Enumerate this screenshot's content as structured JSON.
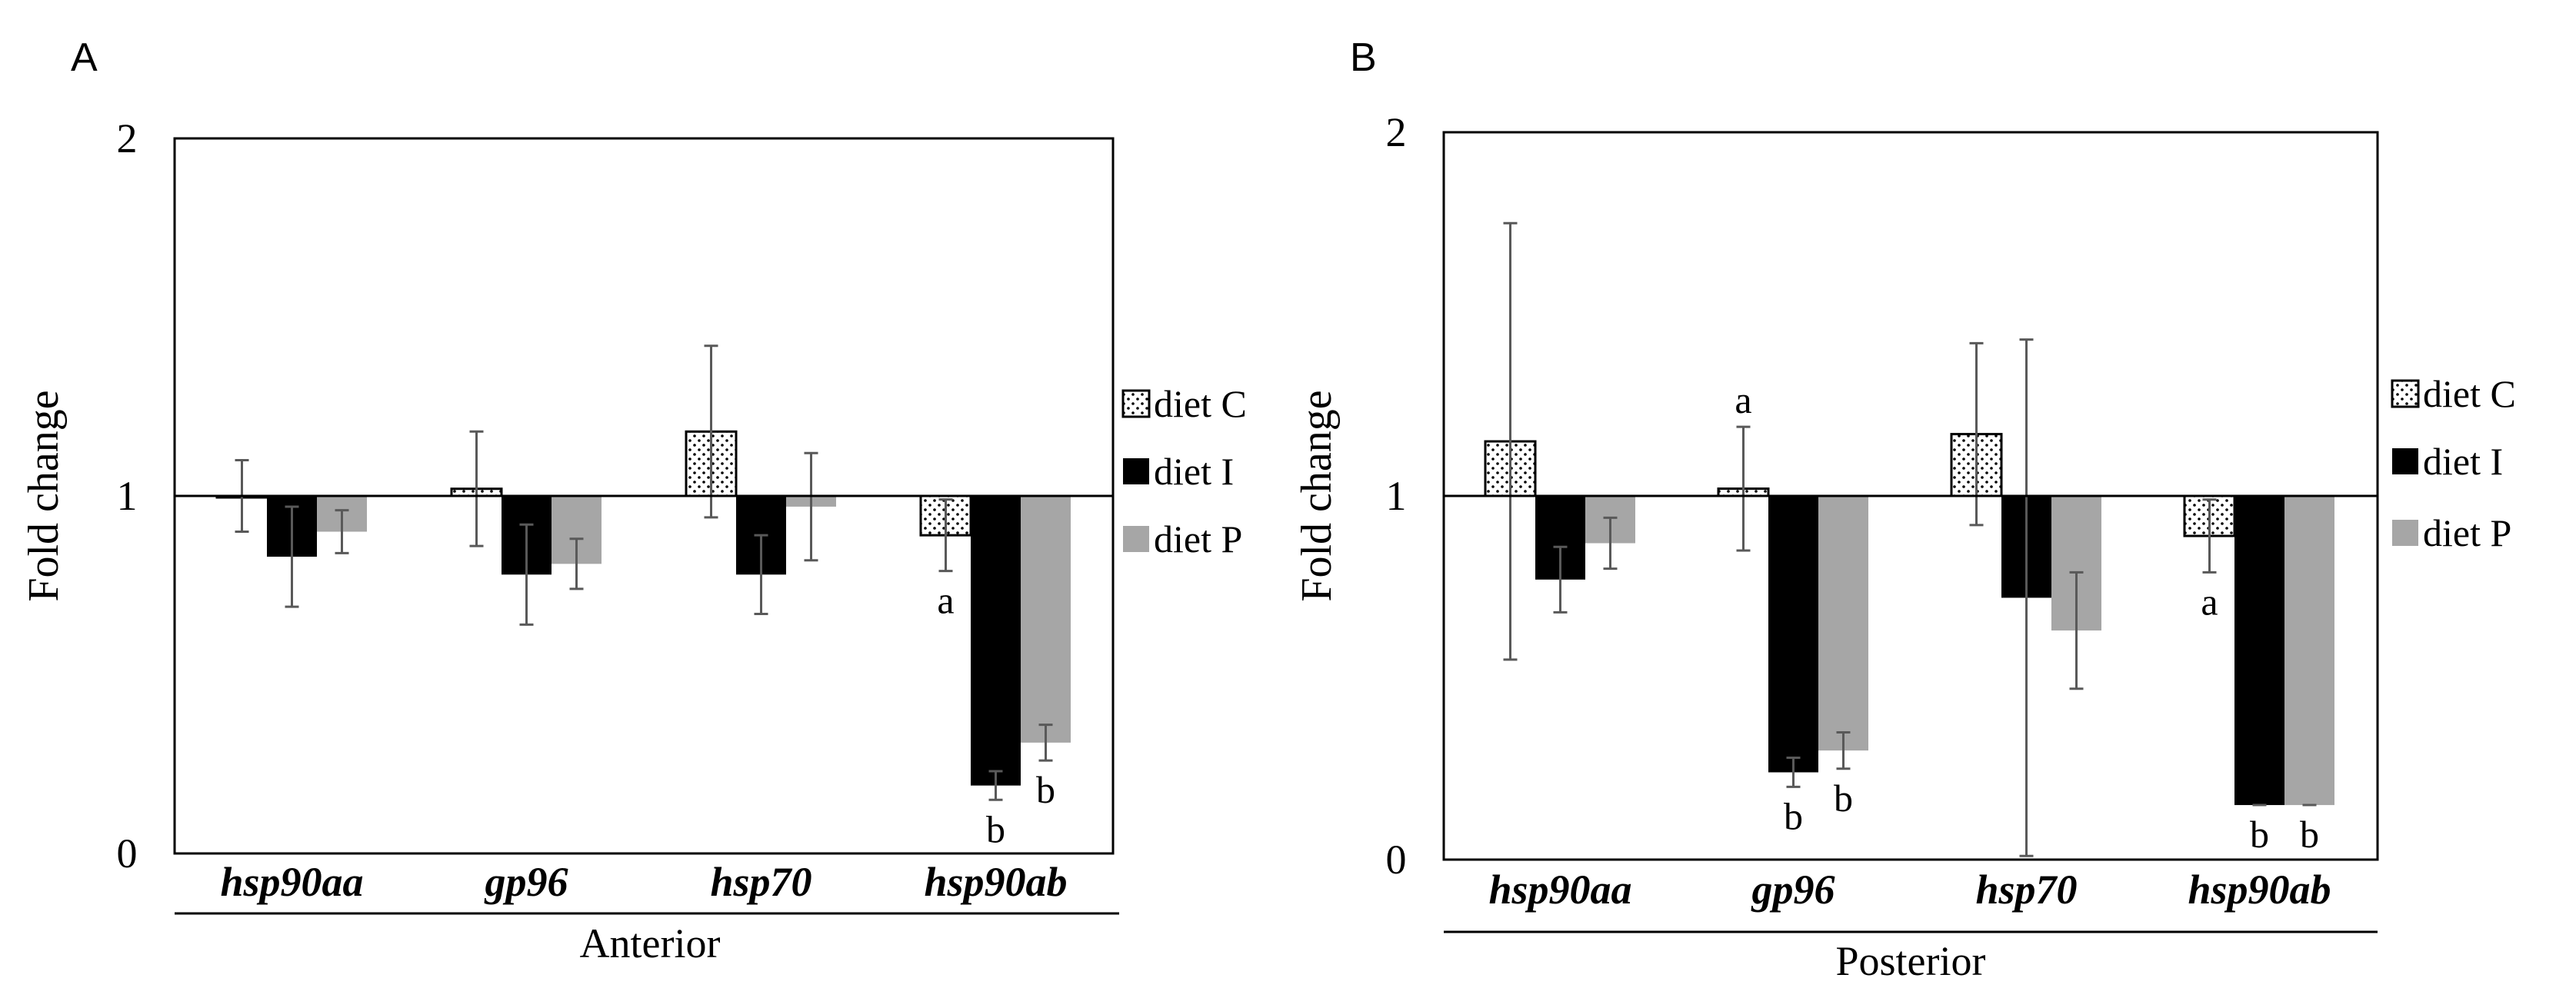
{
  "chart_data": [
    {
      "type": "bar",
      "panel_label": "A",
      "title": "",
      "xlabel": "Anterior",
      "ylabel": "Fold change",
      "ylim": [
        0,
        2
      ],
      "baseline": 1,
      "yticks": [
        "0",
        "1",
        "2"
      ],
      "categories": [
        "hsp90aa",
        "gp96",
        "hsp70",
        "hsp90ab"
      ],
      "series": [
        {
          "name": "diet C",
          "pattern": "dotted",
          "color": "#ffffff",
          "values": [
            1.0,
            1.02,
            1.18,
            0.89
          ],
          "errors": [
            0.1,
            0.16,
            0.24,
            0.1
          ],
          "labels": [
            "",
            "",
            "",
            "a"
          ]
        },
        {
          "name": "diet I",
          "pattern": "solid",
          "color": "#000000",
          "values": [
            0.83,
            0.78,
            0.78,
            0.19
          ],
          "errors": [
            0.14,
            0.14,
            0.11,
            0.04
          ],
          "labels": [
            "",
            "",
            "",
            "b"
          ]
        },
        {
          "name": "diet P",
          "pattern": "solid",
          "color": "#a6a6a6",
          "values": [
            0.9,
            0.81,
            0.97,
            0.31
          ],
          "errors": [
            0.06,
            0.07,
            0.15,
            0.05
          ],
          "labels": [
            "",
            "",
            "",
            "b"
          ]
        }
      ],
      "legend": [
        "diet C",
        "diet I",
        "diet P"
      ]
    },
    {
      "type": "bar",
      "panel_label": "B",
      "title": "",
      "xlabel": "Posterior",
      "ylabel": "Fold change",
      "ylim": [
        0,
        2
      ],
      "baseline": 1,
      "yticks": [
        "0",
        "1",
        "2"
      ],
      "categories": [
        "hsp90aa",
        "gp96",
        "hsp70",
        "hsp90ab"
      ],
      "series": [
        {
          "name": "diet C",
          "pattern": "dotted",
          "color": "#ffffff",
          "values": [
            1.15,
            1.02,
            1.17,
            0.89
          ],
          "errors": [
            0.6,
            0.17,
            0.25,
            0.1
          ],
          "labels": [
            "",
            "a",
            "",
            "a"
          ]
        },
        {
          "name": "diet I",
          "pattern": "solid",
          "color": "#000000",
          "values": [
            0.77,
            0.24,
            0.72,
            0.15
          ],
          "errors": [
            0.09,
            0.04,
            0.71,
            0.0
          ],
          "labels": [
            "",
            "b",
            "",
            "b"
          ]
        },
        {
          "name": "diet P",
          "pattern": "solid",
          "color": "#a6a6a6",
          "values": [
            0.87,
            0.3,
            0.63,
            0.15
          ],
          "errors": [
            0.07,
            0.05,
            0.16,
            0.0
          ],
          "labels": [
            "",
            "b",
            "",
            "b"
          ]
        }
      ],
      "legend": [
        "diet  C",
        "diet I",
        "diet P"
      ]
    }
  ]
}
